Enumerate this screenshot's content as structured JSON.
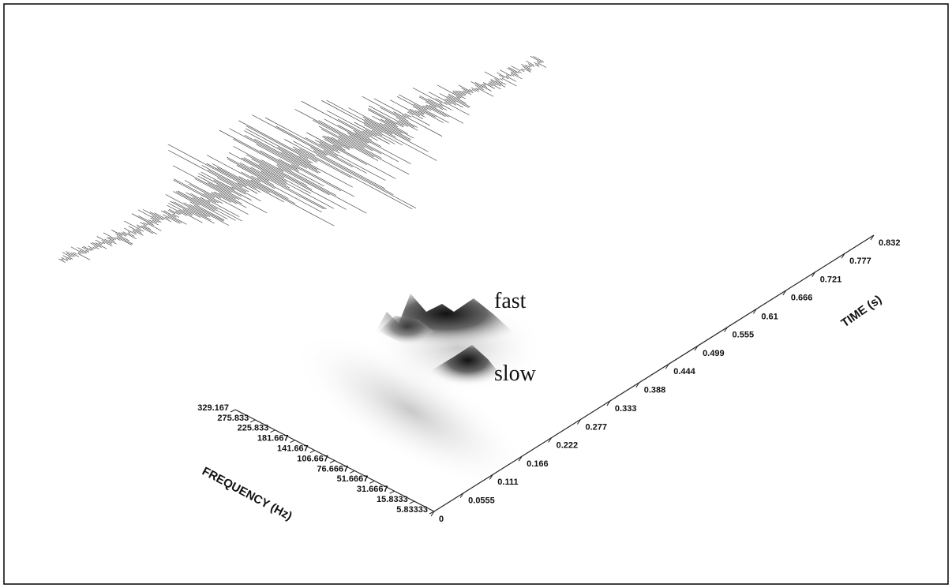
{
  "chart_data": {
    "type": "surface",
    "x_label": "TIME (s)",
    "y_label": "FREQUENCY (Hz)",
    "xlim": [
      0,
      0.832
    ],
    "xticks": [
      0,
      0.0555,
      0.111,
      0.166,
      0.222,
      0.277,
      0.333,
      0.388,
      0.444,
      0.499,
      0.555,
      0.61,
      0.666,
      0.721,
      0.777,
      0.832
    ],
    "y_categories": [
      "5.83333",
      "15.8333",
      "31.6667",
      "51.6667",
      "76.6667",
      "106.667",
      "141.667",
      "181.667",
      "225.833",
      "275.833",
      "329.167"
    ],
    "annotations": [
      "fast",
      "slow"
    ]
  }
}
